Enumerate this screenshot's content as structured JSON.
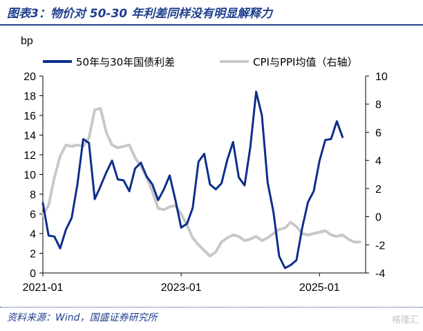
{
  "header": {
    "title": "图表3：物价对 50-30 年利差同样没有明显解释力"
  },
  "footer": {
    "source": "资料来源：Wind，国盛证券研究所",
    "watermark": "格隆汇"
  },
  "colors": {
    "series_spread": "#0c2e8a",
    "series_cpi_ppi": "#c8c8c8",
    "brand": "#1f3f8e"
  },
  "chart_data": {
    "type": "line",
    "y_left_unit": "bp",
    "y_left_lim": [
      0,
      20
    ],
    "y_left_ticks": [
      "0",
      "2",
      "4",
      "6",
      "8",
      "10",
      "12",
      "14",
      "16",
      "18",
      "20"
    ],
    "y_right_lim": [
      -4,
      10
    ],
    "y_right_ticks": [
      "-4",
      "-2",
      "0",
      "2",
      "4",
      "6",
      "8",
      "10"
    ],
    "x_ticks": [
      "2021-01",
      "2023-01",
      "2025-01"
    ],
    "legend_position": "top",
    "grid": false,
    "x_months": [
      "2021-01",
      "2021-02",
      "2021-03",
      "2021-04",
      "2021-05",
      "2021-06",
      "2021-07",
      "2021-08",
      "2021-09",
      "2021-10",
      "2021-11",
      "2021-12",
      "2022-01",
      "2022-02",
      "2022-03",
      "2022-04",
      "2022-05",
      "2022-06",
      "2022-07",
      "2022-08",
      "2022-09",
      "2022-10",
      "2022-11",
      "2022-12",
      "2023-01",
      "2023-02",
      "2023-03",
      "2023-04",
      "2023-05",
      "2023-06",
      "2023-07",
      "2023-08",
      "2023-09",
      "2023-10",
      "2023-11",
      "2023-12",
      "2024-01",
      "2024-02",
      "2024-03",
      "2024-04",
      "2024-05",
      "2024-06",
      "2024-07",
      "2024-08",
      "2024-09",
      "2024-10",
      "2024-11",
      "2024-12",
      "2025-01",
      "2025-02",
      "2025-03",
      "2025-04",
      "2025-05",
      "2025-06",
      "2025-07",
      "2025-08"
    ],
    "series": [
      {
        "name": "50年与30年国债利差",
        "axis": "left",
        "values": [
          7.1,
          3.8,
          3.7,
          2.5,
          4.4,
          5.6,
          9.0,
          13.6,
          13.2,
          7.5,
          8.8,
          10.2,
          11.4,
          9.5,
          9.4,
          8.3,
          10.6,
          11.2,
          9.8,
          9.0,
          7.4,
          8.5,
          9.9,
          7.4,
          4.6,
          5.0,
          6.6,
          11.3,
          12.1,
          9.0,
          8.5,
          9.1,
          11.5,
          13.3,
          9.7,
          8.9,
          12.8,
          18.4,
          16.0,
          9.2,
          6.2,
          1.7,
          0.5,
          0.8,
          1.3,
          4.6,
          7.2,
          8.3,
          11.4,
          13.5,
          13.6,
          15.4,
          13.8,
          null,
          null,
          null
        ]
      },
      {
        "name": "CPI与PPI均值（右轴）",
        "axis": "right",
        "values": [
          0.1,
          0.8,
          2.8,
          4.3,
          5.1,
          5.0,
          5.1,
          5.0,
          5.6,
          7.6,
          7.7,
          6.0,
          5.1,
          4.9,
          5.0,
          5.1,
          4.2,
          3.6,
          2.8,
          1.8,
          0.6,
          0.5,
          0.7,
          0.8,
          0.2,
          -0.6,
          -1.5,
          -2.0,
          -2.4,
          -2.8,
          -2.5,
          -1.8,
          -1.5,
          -1.3,
          -1.4,
          -1.7,
          -1.6,
          -1.4,
          -1.7,
          -1.5,
          -1.2,
          -0.9,
          -0.8,
          -0.4,
          -0.7,
          -1.2,
          -1.3,
          -1.2,
          -1.1,
          -1.0,
          -1.3,
          -1.4,
          -1.3,
          -1.6,
          -1.8,
          -1.8
        ]
      }
    ]
  }
}
